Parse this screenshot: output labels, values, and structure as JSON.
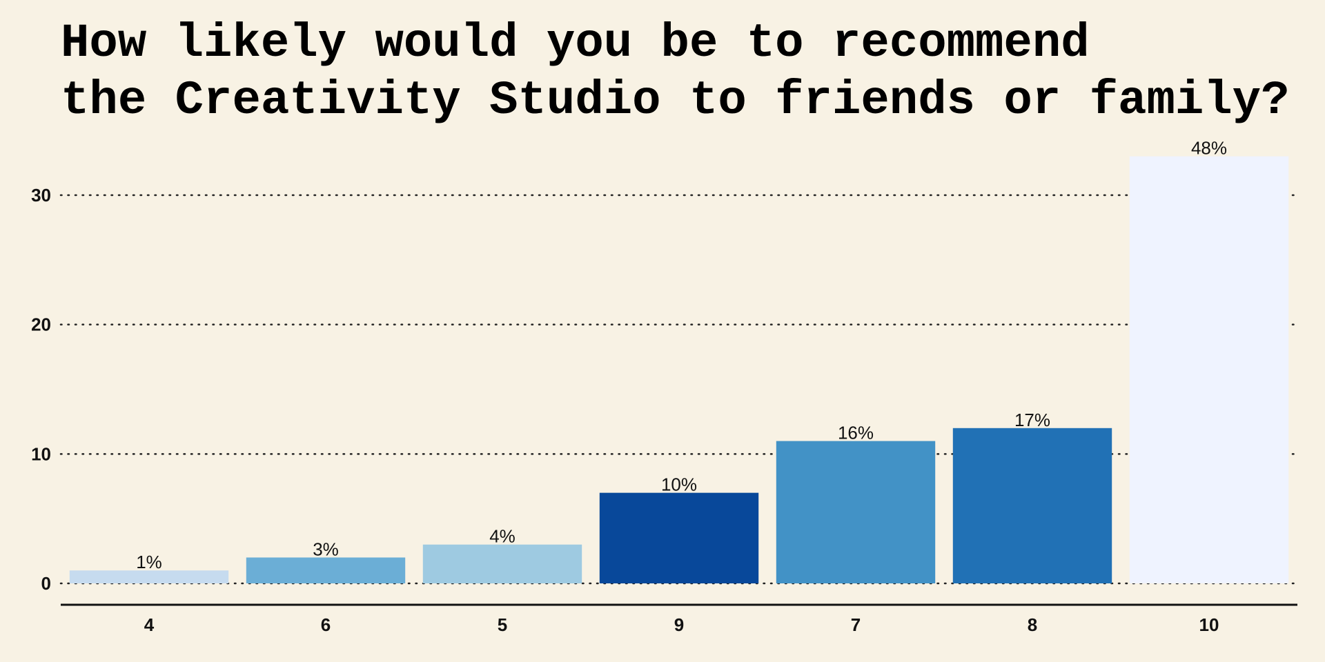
{
  "title_lines": [
    "How likely would you be to recommend",
    "the Creativity Studio to friends or family?"
  ],
  "chart_data": {
    "type": "bar",
    "title": "How likely would you be to recommend the Creativity Studio to friends or family?",
    "xlabel": "",
    "ylabel": "",
    "categories": [
      "4",
      "6",
      "5",
      "9",
      "7",
      "8",
      "10"
    ],
    "values": [
      1,
      2,
      3,
      7,
      11,
      12,
      33
    ],
    "data_labels": [
      "1%",
      "3%",
      "4%",
      "10%",
      "16%",
      "17%",
      "48%"
    ],
    "colors": [
      "#c6dbef",
      "#6baed6",
      "#9ecae1",
      "#08489a",
      "#4292c6",
      "#2171b5",
      "#eff3ff"
    ],
    "ylim": [
      0,
      33
    ],
    "yticks": [
      0,
      10,
      20,
      30
    ],
    "grid": true,
    "legend": "none"
  }
}
